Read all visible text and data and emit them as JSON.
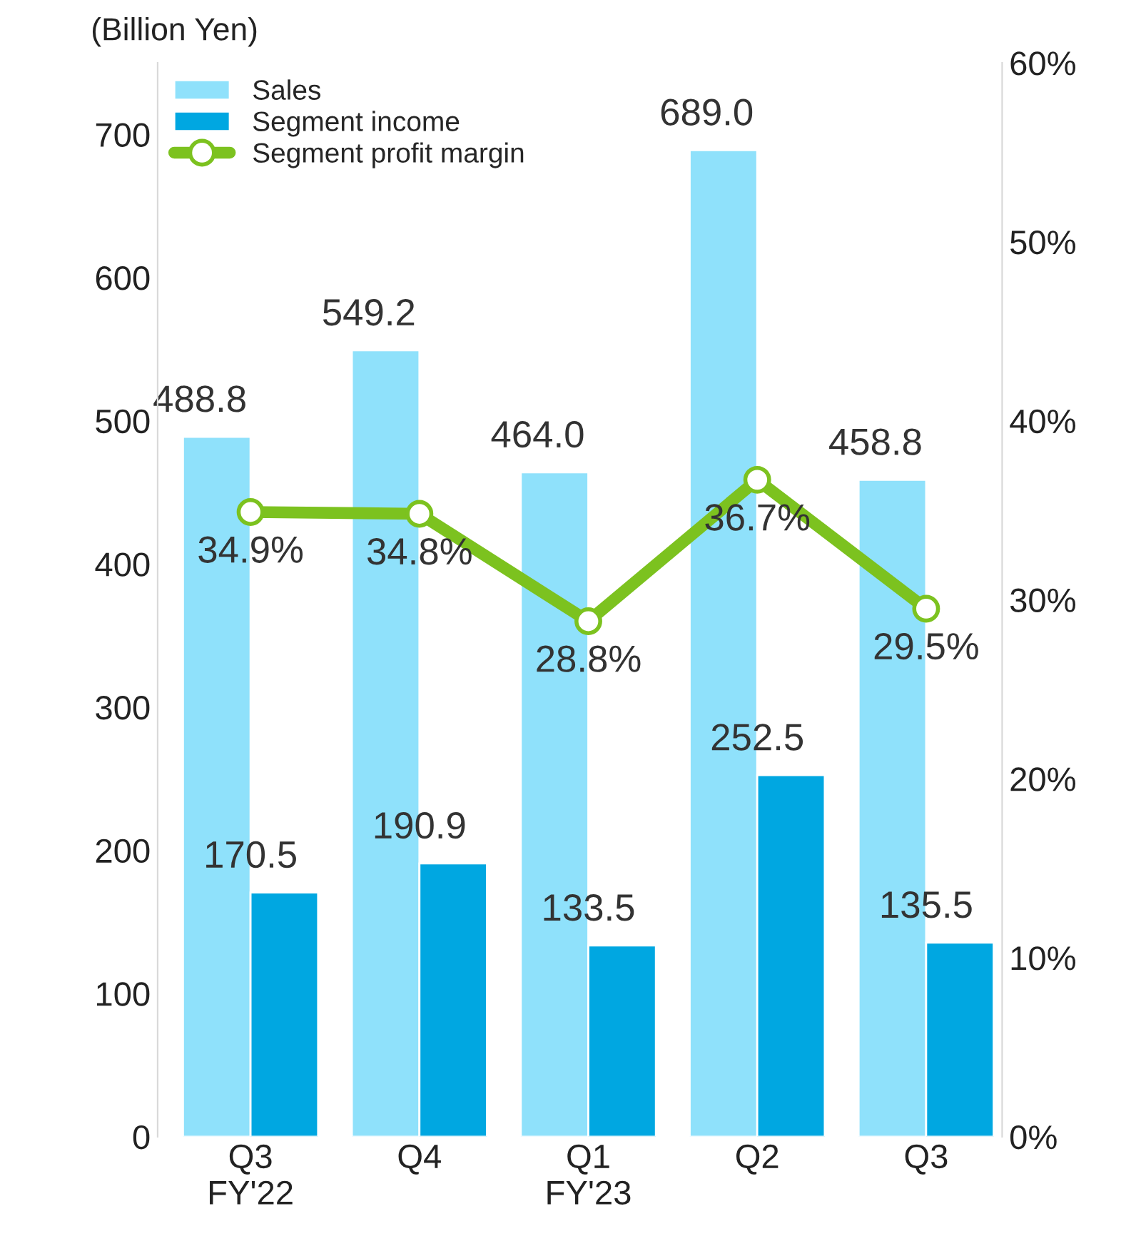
{
  "chart_data": {
    "type": "bar",
    "ylabel": "(Billion Yen)",
    "categories": [
      "Q3\nFY'22",
      "Q4",
      "Q1\nFY'23",
      "Q2",
      "Q3"
    ],
    "series": [
      {
        "name": "Sales",
        "color": "#8fe1fb",
        "values": [
          488.8,
          549.2,
          464.0,
          689.0,
          458.8
        ],
        "value_labels": [
          "488.8",
          "549.2",
          "464.0",
          "689.0",
          "458.8"
        ]
      },
      {
        "name": "Segment income",
        "color": "#00a7e1",
        "values": [
          170.5,
          190.9,
          133.5,
          252.5,
          135.5
        ],
        "value_labels": [
          "170.5",
          "190.9",
          "133.5",
          "252.5",
          "135.5"
        ]
      },
      {
        "name": "Segment profit margin",
        "type": "line",
        "axis": "y2",
        "color": "#7cc21f",
        "values": [
          34.9,
          34.8,
          28.8,
          36.7,
          29.5
        ],
        "value_labels": [
          "34.9%",
          "34.8%",
          "28.8%",
          "36.7%",
          "29.5%"
        ]
      }
    ],
    "ylim": [
      0,
      750
    ],
    "yticks": [
      0,
      100,
      200,
      300,
      400,
      500,
      600,
      700
    ],
    "y2lim": [
      0,
      60
    ],
    "y2ticks": [
      {
        "value": 0,
        "label": "0%"
      },
      {
        "value": 10,
        "label": "10%"
      },
      {
        "value": 20,
        "label": "20%"
      },
      {
        "value": 30,
        "label": "30%"
      },
      {
        "value": 40,
        "label": "40%"
      },
      {
        "value": 50,
        "label": "50%"
      },
      {
        "value": 60,
        "label": "60%"
      }
    ],
    "data_labels": true,
    "legend": "top left",
    "marker": "circle",
    "line_style": "solid"
  }
}
